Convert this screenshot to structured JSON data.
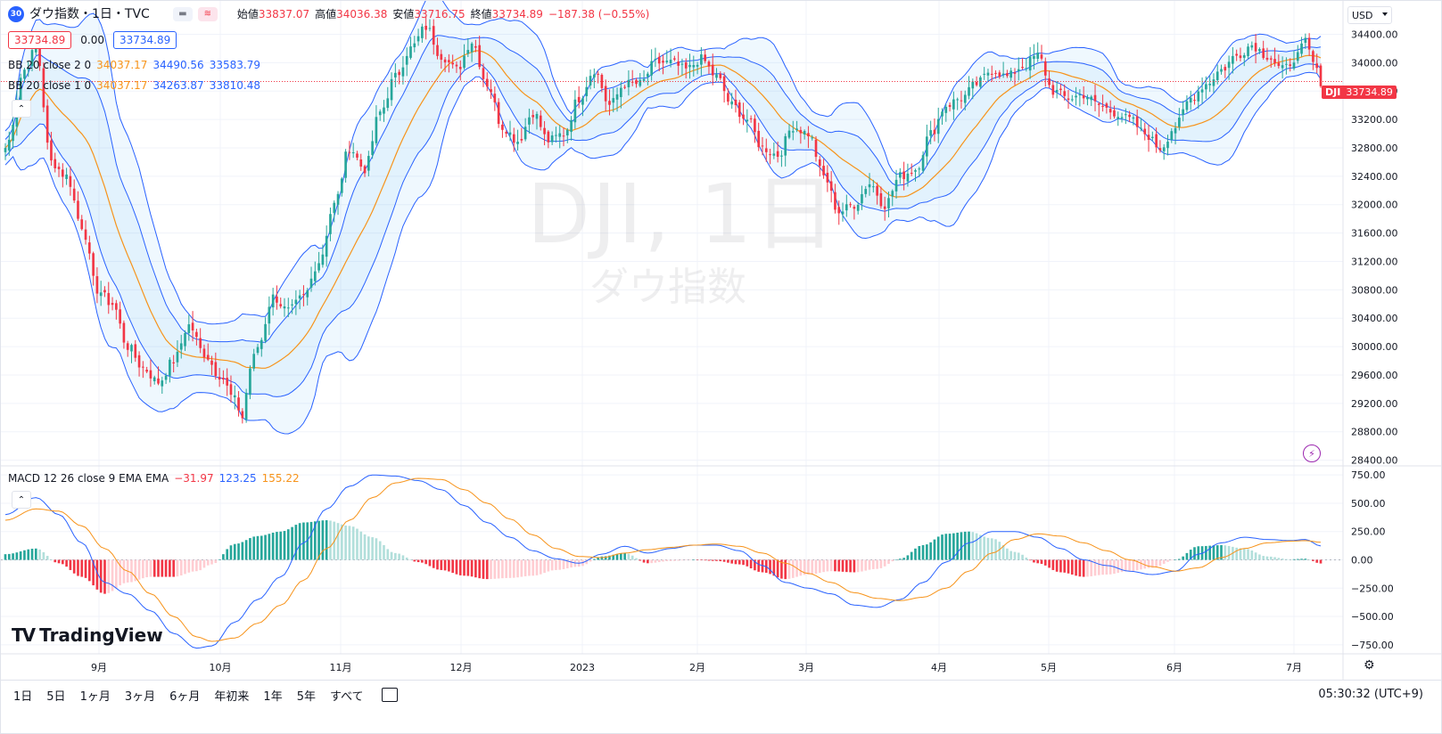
{
  "header": {
    "badge": "30",
    "symbol_title": "ダウ指数・1日・TVC",
    "ohlc": {
      "open_label": "始値",
      "open": "33837.07",
      "high_label": "高値",
      "high": "34036.38",
      "low_label": "安値",
      "low": "33716.75",
      "close_label": "終値",
      "close": "33734.89",
      "change": "−187.38 (−0.55%)"
    },
    "bid": "33734.89",
    "spread": "0.00",
    "ask": "33734.89"
  },
  "indicators": {
    "bb2": {
      "label": "BB 20 close 2 0",
      "basis": "34037.17",
      "upper": "34490.56",
      "lower": "33583.79"
    },
    "bb1": {
      "label": "BB 20 close 1 0",
      "basis": "34037.17",
      "upper": "34263.87",
      "lower": "33810.48"
    },
    "macd": {
      "label": "MACD 12 26 close 9 EMA EMA",
      "hist": "−31.97",
      "macd": "123.25",
      "signal": "155.22"
    }
  },
  "watermark": {
    "symbol": "DJI, 1日",
    "name": "ダウ指数"
  },
  "price_tag": {
    "ticker": "DJI",
    "value": "33734.89"
  },
  "currency": "USD",
  "logo": "TradingView",
  "ranges": [
    "1日",
    "5日",
    "1ヶ月",
    "3ヶ月",
    "6ヶ月",
    "年初来",
    "1年",
    "5年",
    "すべて"
  ],
  "clock": "05:30:32 (UTC+9)",
  "colors": {
    "up": "#26a69a",
    "down": "#f23645",
    "band": "#2962ff",
    "basis": "#f7931a",
    "fill": "rgba(33,150,243,0.07)"
  },
  "chart_data": [
    {
      "type": "candlestick",
      "title": "DJI, 1日",
      "x_ticks": [
        "9月",
        "10月",
        "11月",
        "12月",
        "2023",
        "2月",
        "3月",
        "4月",
        "5月",
        "6月",
        "7月"
      ],
      "y_ticks": [
        34400,
        34000,
        33600,
        33200,
        32800,
        32400,
        32000,
        31600,
        31200,
        30800,
        30400,
        30000,
        29600,
        29200,
        28800,
        28400
      ],
      "ylim": [
        28320,
        34870
      ],
      "close_anchors": [
        [
          0,
          32800
        ],
        [
          5,
          33900
        ],
        [
          8,
          34200
        ],
        [
          12,
          32600
        ],
        [
          16,
          32400
        ],
        [
          20,
          31700
        ],
        [
          24,
          30800
        ],
        [
          28,
          30600
        ],
        [
          32,
          30000
        ],
        [
          36,
          29700
        ],
        [
          40,
          29500
        ],
        [
          44,
          29800
        ],
        [
          48,
          30300
        ],
        [
          52,
          29900
        ],
        [
          56,
          29600
        ],
        [
          60,
          29250
        ],
        [
          62,
          29000
        ],
        [
          64,
          29700
        ],
        [
          66,
          30000
        ],
        [
          70,
          30700
        ],
        [
          74,
          30500
        ],
        [
          78,
          30700
        ],
        [
          82,
          31200
        ],
        [
          86,
          32000
        ],
        [
          90,
          32800
        ],
        [
          94,
          32500
        ],
        [
          98,
          33300
        ],
        [
          102,
          33800
        ],
        [
          106,
          34200
        ],
        [
          110,
          34500
        ],
        [
          114,
          34100
        ],
        [
          118,
          33900
        ],
        [
          122,
          34300
        ],
        [
          126,
          33700
        ],
        [
          130,
          33100
        ],
        [
          134,
          32900
        ],
        [
          138,
          33300
        ],
        [
          142,
          32900
        ],
        [
          146,
          33000
        ],
        [
          150,
          33500
        ],
        [
          154,
          33900
        ],
        [
          158,
          33400
        ],
        [
          162,
          33700
        ],
        [
          166,
          33700
        ],
        [
          170,
          34000
        ],
        [
          174,
          34000
        ],
        [
          178,
          33900
        ],
        [
          182,
          34050
        ],
        [
          186,
          33800
        ],
        [
          190,
          33400
        ],
        [
          194,
          33200
        ],
        [
          198,
          32800
        ],
        [
          202,
          32700
        ],
        [
          206,
          33100
        ],
        [
          210,
          33000
        ],
        [
          214,
          32400
        ],
        [
          218,
          31900
        ],
        [
          222,
          32000
        ],
        [
          226,
          32300
        ],
        [
          230,
          32000
        ],
        [
          234,
          32400
        ],
        [
          238,
          32500
        ],
        [
          242,
          33000
        ],
        [
          246,
          33400
        ],
        [
          250,
          33500
        ],
        [
          254,
          33700
        ],
        [
          258,
          33900
        ],
        [
          262,
          33800
        ],
        [
          266,
          33950
        ],
        [
          270,
          34100
        ],
        [
          274,
          33600
        ],
        [
          278,
          33500
        ],
        [
          282,
          33550
        ],
        [
          286,
          33400
        ],
        [
          290,
          33300
        ],
        [
          294,
          33200
        ],
        [
          298,
          33000
        ],
        [
          302,
          32800
        ],
        [
          306,
          33100
        ],
        [
          310,
          33500
        ],
        [
          314,
          33700
        ],
        [
          318,
          33900
        ],
        [
          322,
          34100
        ],
        [
          326,
          34250
        ],
        [
          330,
          34100
        ],
        [
          334,
          33900
        ],
        [
          338,
          34100
        ],
        [
          340,
          34300
        ],
        [
          342,
          34000
        ],
        [
          344,
          33735
        ]
      ]
    },
    {
      "type": "macd",
      "series": [
        {
          "name": "MACD",
          "color": "#2962ff"
        },
        {
          "name": "Signal",
          "color": "#f7931a"
        },
        {
          "name": "Histogram",
          "up": "#26a69a",
          "down": "#f23645"
        }
      ],
      "y_ticks": [
        750,
        500,
        250,
        0,
        -250,
        -500,
        -750
      ],
      "ylim": [
        -830,
        830
      ],
      "macd_anchors": [
        [
          0,
          400
        ],
        [
          8,
          550
        ],
        [
          14,
          400
        ],
        [
          20,
          150
        ],
        [
          26,
          -200
        ],
        [
          32,
          -300
        ],
        [
          38,
          -450
        ],
        [
          44,
          -650
        ],
        [
          50,
          -780
        ],
        [
          54,
          -760
        ],
        [
          60,
          -550
        ],
        [
          66,
          -350
        ],
        [
          72,
          -150
        ],
        [
          78,
          150
        ],
        [
          84,
          450
        ],
        [
          90,
          650
        ],
        [
          96,
          750
        ],
        [
          102,
          740
        ],
        [
          108,
          700
        ],
        [
          114,
          620
        ],
        [
          120,
          480
        ],
        [
          126,
          330
        ],
        [
          132,
          200
        ],
        [
          138,
          80
        ],
        [
          144,
          10
        ],
        [
          150,
          -30
        ],
        [
          156,
          50
        ],
        [
          162,
          120
        ],
        [
          168,
          60
        ],
        [
          174,
          100
        ],
        [
          180,
          130
        ],
        [
          186,
          130
        ],
        [
          192,
          80
        ],
        [
          198,
          -50
        ],
        [
          204,
          -200
        ],
        [
          210,
          -250
        ],
        [
          216,
          -300
        ],
        [
          222,
          -400
        ],
        [
          228,
          -420
        ],
        [
          234,
          -350
        ],
        [
          240,
          -200
        ],
        [
          246,
          -20
        ],
        [
          252,
          150
        ],
        [
          258,
          250
        ],
        [
          264,
          250
        ],
        [
          270,
          200
        ],
        [
          276,
          100
        ],
        [
          282,
          0
        ],
        [
          288,
          -50
        ],
        [
          294,
          -100
        ],
        [
          300,
          -130
        ],
        [
          306,
          -100
        ],
        [
          312,
          50
        ],
        [
          318,
          150
        ],
        [
          324,
          200
        ],
        [
          330,
          180
        ],
        [
          336,
          170
        ],
        [
          340,
          180
        ],
        [
          344,
          123
        ]
      ],
      "signal_anchors": [
        [
          0,
          350
        ],
        [
          8,
          450
        ],
        [
          14,
          430
        ],
        [
          20,
          300
        ],
        [
          26,
          100
        ],
        [
          32,
          -100
        ],
        [
          38,
          -300
        ],
        [
          44,
          -500
        ],
        [
          50,
          -680
        ],
        [
          54,
          -720
        ],
        [
          60,
          -690
        ],
        [
          66,
          -560
        ],
        [
          72,
          -400
        ],
        [
          78,
          -180
        ],
        [
          84,
          100
        ],
        [
          90,
          350
        ],
        [
          96,
          550
        ],
        [
          102,
          680
        ],
        [
          108,
          720
        ],
        [
          114,
          710
        ],
        [
          120,
          620
        ],
        [
          126,
          500
        ],
        [
          132,
          360
        ],
        [
          138,
          220
        ],
        [
          144,
          100
        ],
        [
          150,
          30
        ],
        [
          156,
          20
        ],
        [
          162,
          60
        ],
        [
          168,
          90
        ],
        [
          174,
          110
        ],
        [
          180,
          130
        ],
        [
          186,
          140
        ],
        [
          192,
          120
        ],
        [
          198,
          60
        ],
        [
          204,
          -30
        ],
        [
          210,
          -120
        ],
        [
          216,
          -200
        ],
        [
          222,
          -290
        ],
        [
          228,
          -340
        ],
        [
          234,
          -360
        ],
        [
          240,
          -330
        ],
        [
          246,
          -250
        ],
        [
          252,
          -100
        ],
        [
          258,
          60
        ],
        [
          264,
          180
        ],
        [
          270,
          230
        ],
        [
          276,
          210
        ],
        [
          282,
          150
        ],
        [
          288,
          80
        ],
        [
          294,
          0
        ],
        [
          300,
          -60
        ],
        [
          306,
          -100
        ],
        [
          312,
          -70
        ],
        [
          318,
          20
        ],
        [
          324,
          100
        ],
        [
          330,
          150
        ],
        [
          336,
          165
        ],
        [
          340,
          170
        ],
        [
          344,
          155
        ]
      ]
    }
  ]
}
